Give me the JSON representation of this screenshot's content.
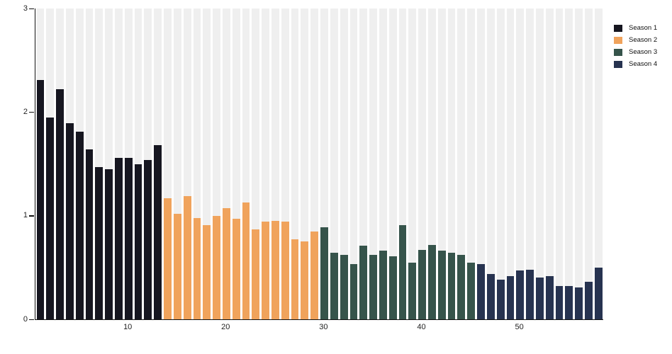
{
  "chart_data": {
    "type": "bar",
    "title": "",
    "xlabel": "",
    "ylabel": "",
    "ylim": [
      0,
      3
    ],
    "y_ticks": [
      0,
      1,
      2,
      3
    ],
    "x_ticks": [
      10,
      20,
      30,
      40,
      50
    ],
    "n_bars": 58,
    "grid": false,
    "background_stripes": true,
    "backdrop_color": "#efefef",
    "axis_color": "#111111",
    "legend_position": "top-right",
    "series": [
      {
        "name": "Season 1",
        "color": "#161620",
        "episodes": [
          1,
          2,
          3,
          4,
          5,
          6,
          7,
          8,
          9,
          10,
          11,
          12,
          13
        ],
        "values": [
          2.31,
          1.95,
          2.22,
          1.89,
          1.81,
          1.64,
          1.47,
          1.45,
          1.56,
          1.56,
          1.5,
          1.54,
          1.68
        ]
      },
      {
        "name": "Season 2",
        "color": "#f0a35c",
        "episodes": [
          14,
          15,
          16,
          17,
          18,
          19,
          20,
          21,
          22,
          23,
          24,
          25,
          26,
          27,
          28,
          29
        ],
        "values": [
          1.17,
          1.02,
          1.19,
          0.98,
          0.91,
          1.0,
          1.07,
          0.97,
          1.13,
          0.87,
          0.94,
          0.95,
          0.94,
          0.77,
          0.75,
          0.85
        ]
      },
      {
        "name": "Season 3",
        "color": "#36544b",
        "episodes": [
          30,
          31,
          32,
          33,
          34,
          35,
          36,
          37,
          38,
          39,
          40,
          41,
          42,
          43,
          44,
          45
        ],
        "values": [
          0.89,
          0.64,
          0.62,
          0.53,
          0.71,
          0.62,
          0.66,
          0.61,
          0.91,
          0.55,
          0.67,
          0.72,
          0.66,
          0.64,
          0.62,
          0.55
        ]
      },
      {
        "name": "Season 4",
        "color": "#273350",
        "episodes": [
          46,
          47,
          48,
          49,
          50,
          51,
          52,
          53,
          54,
          55,
          56,
          57,
          58
        ],
        "values": [
          0.53,
          0.44,
          0.38,
          0.42,
          0.47,
          0.48,
          0.4,
          0.42,
          0.32,
          0.32,
          0.31,
          0.36,
          0.5
        ]
      }
    ]
  }
}
